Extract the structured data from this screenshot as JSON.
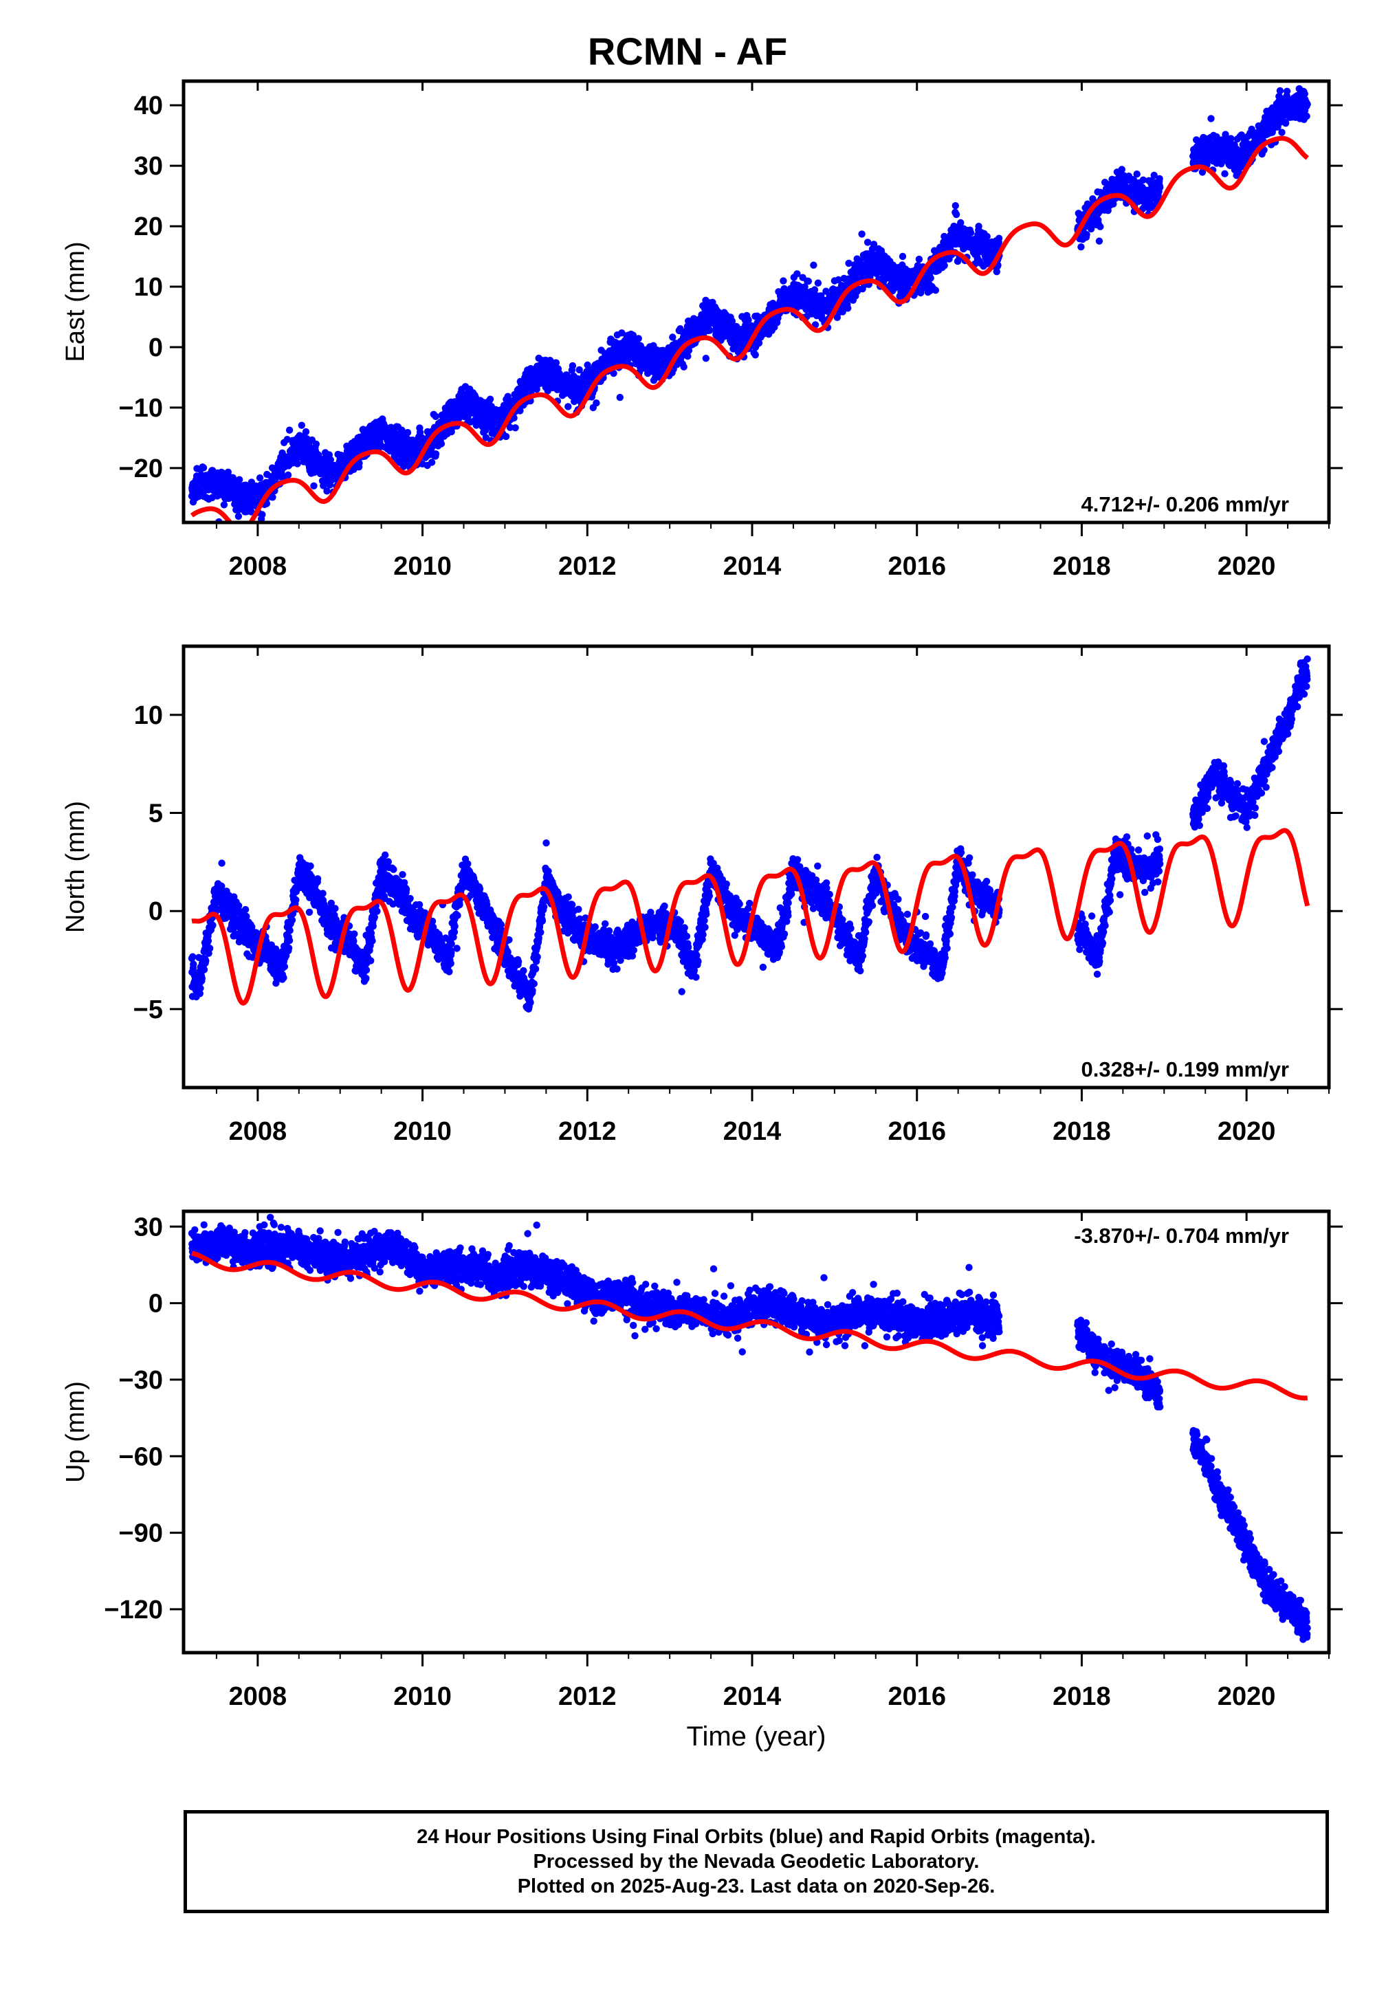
{
  "title": "RCMN - AF",
  "footer": {
    "line1": "24 Hour Positions Using Final Orbits (blue) and Rapid Orbits (magenta).",
    "line2": "Processed by the Nevada Geodetic Laboratory.",
    "line3": "Plotted on 2025-Aug-23. Last data on 2020-Sep-26."
  },
  "colors": {
    "data_points": "#0000ff",
    "model_fit": "#ff0000",
    "frame": "#000000"
  },
  "chart_data": [
    {
      "type": "scatter",
      "xlabel": "",
      "ylabel": "East (mm)",
      "xlim": [
        2007.1,
        2021.0
      ],
      "ylim": [
        -29,
        44
      ],
      "xticks": [
        2008,
        2010,
        2012,
        2014,
        2016,
        2018,
        2020
      ],
      "yticks": [
        -20,
        -10,
        0,
        10,
        20,
        30,
        40
      ],
      "rate_label": "4.712+/- 0.206 mm/yr",
      "rate_label_position": "bottom-right",
      "series": [
        {
          "role": "daily positions",
          "color": "#0000ff",
          "segments": [
            [
              2007.2,
              2017.0
            ],
            [
              2017.95,
              2018.95
            ],
            [
              2019.35,
              2020.74
            ]
          ],
          "points": [
            [
              2007.3,
              -23
            ],
            [
              2007.5,
              -22
            ],
            [
              2007.7,
              -24
            ],
            [
              2007.9,
              -25.5
            ],
            [
              2008.1,
              -24
            ],
            [
              2008.3,
              -19
            ],
            [
              2008.5,
              -16
            ],
            [
              2008.7,
              -19
            ],
            [
              2008.9,
              -21.5
            ],
            [
              2009.1,
              -19
            ],
            [
              2009.3,
              -16
            ],
            [
              2009.5,
              -14
            ],
            [
              2009.7,
              -16
            ],
            [
              2009.9,
              -17.5
            ],
            [
              2010.1,
              -16
            ],
            [
              2010.3,
              -12
            ],
            [
              2010.5,
              -9
            ],
            [
              2010.7,
              -11
            ],
            [
              2010.9,
              -12.5
            ],
            [
              2011.1,
              -10
            ],
            [
              2011.3,
              -6
            ],
            [
              2011.5,
              -4
            ],
            [
              2011.7,
              -6
            ],
            [
              2011.9,
              -7.5
            ],
            [
              2012.1,
              -5
            ],
            [
              2012.3,
              -1.5
            ],
            [
              2012.5,
              0
            ],
            [
              2012.7,
              -2
            ],
            [
              2012.9,
              -3
            ],
            [
              2013.1,
              -1
            ],
            [
              2013.3,
              3
            ],
            [
              2013.5,
              5
            ],
            [
              2013.7,
              3
            ],
            [
              2013.9,
              1.5
            ],
            [
              2014.1,
              2.5
            ],
            [
              2014.3,
              6
            ],
            [
              2014.5,
              9
            ],
            [
              2014.7,
              7.5
            ],
            [
              2014.9,
              6.5
            ],
            [
              2015.1,
              8.5
            ],
            [
              2015.3,
              12
            ],
            [
              2015.5,
              14.5
            ],
            [
              2015.7,
              12
            ],
            [
              2015.9,
              10.5
            ],
            [
              2016.1,
              11.5
            ],
            [
              2016.3,
              15
            ],
            [
              2016.5,
              19
            ],
            [
              2016.7,
              16.5
            ],
            [
              2016.9,
              15.5
            ],
            [
              2018.0,
              20
            ],
            [
              2018.2,
              23
            ],
            [
              2018.4,
              26.5
            ],
            [
              2018.6,
              26
            ],
            [
              2018.8,
              24.5
            ],
            [
              2019.4,
              32
            ],
            [
              2019.6,
              33
            ],
            [
              2019.8,
              31.5
            ],
            [
              2020.0,
              32
            ],
            [
              2020.2,
              35
            ],
            [
              2020.4,
              39
            ],
            [
              2020.6,
              40
            ]
          ]
        },
        {
          "role": "model fit",
          "color": "#ff0000",
          "model": {
            "ref_year": 2014.0,
            "offset": 2.2,
            "rate": 4.712,
            "annual_sin": 2.5,
            "annual_cos": -1.2,
            "semiannual_sin": 0.4,
            "semiannual_cos": 0.3
          },
          "x_range": [
            2007.2,
            2020.74
          ]
        }
      ]
    },
    {
      "type": "scatter",
      "xlabel": "",
      "ylabel": "North (mm)",
      "xlim": [
        2007.1,
        2021.0
      ],
      "ylim": [
        -9,
        13.5
      ],
      "xticks": [
        2008,
        2010,
        2012,
        2014,
        2016,
        2018,
        2020
      ],
      "yticks": [
        -5,
        0,
        5,
        10
      ],
      "rate_label": "0.328+/- 0.199 mm/yr",
      "rate_label_position": "bottom-right",
      "series": [
        {
          "role": "daily positions",
          "color": "#0000ff",
          "segments": [
            [
              2007.2,
              2017.0
            ],
            [
              2017.95,
              2018.95
            ],
            [
              2019.35,
              2020.74
            ]
          ],
          "points": [
            [
              2007.3,
              -3.5
            ],
            [
              2007.5,
              1
            ],
            [
              2007.7,
              0
            ],
            [
              2007.9,
              -1.5
            ],
            [
              2008.1,
              -2
            ],
            [
              2008.3,
              -3
            ],
            [
              2008.5,
              2
            ],
            [
              2008.7,
              1
            ],
            [
              2008.9,
              -1
            ],
            [
              2009.1,
              -1.5
            ],
            [
              2009.3,
              -3
            ],
            [
              2009.5,
              2
            ],
            [
              2009.7,
              1
            ],
            [
              2009.9,
              -0.5
            ],
            [
              2010.1,
              -1
            ],
            [
              2010.3,
              -2.5
            ],
            [
              2010.5,
              2
            ],
            [
              2010.7,
              0.5
            ],
            [
              2010.9,
              -1
            ],
            [
              2011.1,
              -3
            ],
            [
              2011.3,
              -4.5
            ],
            [
              2011.5,
              1.5
            ],
            [
              2011.7,
              0
            ],
            [
              2011.9,
              -1
            ],
            [
              2012.3,
              -2
            ],
            [
              2012.7,
              -1
            ],
            [
              2012.9,
              -0.5
            ],
            [
              2013.1,
              -1
            ],
            [
              2013.3,
              -3
            ],
            [
              2013.5,
              2
            ],
            [
              2013.7,
              0.5
            ],
            [
              2013.9,
              -0.5
            ],
            [
              2014.1,
              -1
            ],
            [
              2014.3,
              -2
            ],
            [
              2014.5,
              2
            ],
            [
              2014.7,
              1
            ],
            [
              2014.9,
              0.5
            ],
            [
              2015.1,
              -1
            ],
            [
              2015.3,
              -2.5
            ],
            [
              2015.5,
              2
            ],
            [
              2015.7,
              0
            ],
            [
              2015.9,
              -1.5
            ],
            [
              2016.1,
              -2
            ],
            [
              2016.3,
              -3
            ],
            [
              2016.5,
              2.5
            ],
            [
              2016.7,
              1
            ],
            [
              2016.9,
              0.5
            ],
            [
              2018.0,
              -1
            ],
            [
              2018.2,
              -2.5
            ],
            [
              2018.4,
              3
            ],
            [
              2018.6,
              2.5
            ],
            [
              2018.8,
              2
            ],
            [
              2019.4,
              5
            ],
            [
              2019.6,
              7
            ],
            [
              2019.8,
              6
            ],
            [
              2020.0,
              5
            ],
            [
              2020.2,
              7
            ],
            [
              2020.4,
              9
            ],
            [
              2020.6,
              11
            ],
            [
              2020.7,
              12
            ]
          ]
        },
        {
          "role": "model fit",
          "color": "#ff0000",
          "model": {
            "ref_year": 2014.0,
            "offset": 0.3,
            "rate": 0.328,
            "annual_sin": 1.9,
            "annual_cos": -1.1,
            "semiannual_sin": 0.6,
            "semiannual_cos": 0.5
          },
          "x_range": [
            2007.2,
            2020.74
          ]
        }
      ]
    },
    {
      "type": "scatter",
      "xlabel": "Time (year)",
      "ylabel": "Up (mm)",
      "xlim": [
        2007.1,
        2021.0
      ],
      "ylim": [
        -137,
        36
      ],
      "xticks": [
        2008,
        2010,
        2012,
        2014,
        2016,
        2018,
        2020
      ],
      "yticks": [
        -120,
        -90,
        -60,
        -30,
        0,
        30
      ],
      "rate_label": "-3.870+/- 0.704 mm/yr",
      "rate_label_position": "top-right",
      "series": [
        {
          "role": "daily positions",
          "color": "#0000ff",
          "segments": [
            [
              2007.2,
              2017.0
            ],
            [
              2017.95,
              2018.95
            ],
            [
              2019.35,
              2020.74
            ]
          ],
          "points": [
            [
              2007.3,
              22
            ],
            [
              2007.6,
              24
            ],
            [
              2007.9,
              20
            ],
            [
              2008.2,
              22
            ],
            [
              2008.5,
              22
            ],
            [
              2008.8,
              18
            ],
            [
              2009.1,
              17
            ],
            [
              2009.4,
              21
            ],
            [
              2009.7,
              22
            ],
            [
              2010.0,
              12
            ],
            [
              2010.3,
              14
            ],
            [
              2010.6,
              14
            ],
            [
              2010.9,
              10
            ],
            [
              2011.2,
              14
            ],
            [
              2011.5,
              12
            ],
            [
              2011.8,
              8
            ],
            [
              2012.1,
              2
            ],
            [
              2012.4,
              4
            ],
            [
              2012.7,
              0
            ],
            [
              2013.0,
              -4
            ],
            [
              2013.3,
              -2
            ],
            [
              2013.6,
              -6
            ],
            [
              2013.9,
              -4
            ],
            [
              2014.2,
              0
            ],
            [
              2014.5,
              -4
            ],
            [
              2014.8,
              -8
            ],
            [
              2015.1,
              -6
            ],
            [
              2015.4,
              -2
            ],
            [
              2015.7,
              -5
            ],
            [
              2016.0,
              -8
            ],
            [
              2016.3,
              -6
            ],
            [
              2016.6,
              -4
            ],
            [
              2016.9,
              -6
            ],
            [
              2018.0,
              -12
            ],
            [
              2018.2,
              -20
            ],
            [
              2018.4,
              -24
            ],
            [
              2018.6,
              -26
            ],
            [
              2018.8,
              -30
            ],
            [
              2019.4,
              -55
            ],
            [
              2019.6,
              -70
            ],
            [
              2019.8,
              -82
            ],
            [
              2020.0,
              -95
            ],
            [
              2020.2,
              -108
            ],
            [
              2020.4,
              -115
            ],
            [
              2020.6,
              -122
            ],
            [
              2020.7,
              -126
            ]
          ]
        },
        {
          "role": "model fit",
          "color": "#ff0000",
          "model": {
            "ref_year": 2014.0,
            "offset": -9,
            "rate": -3.87,
            "annual_sin": 2.0,
            "annual_cos": 1.2,
            "semiannual_sin": 0.0,
            "semiannual_cos": 0.0
          },
          "x_range": [
            2007.2,
            2020.74
          ]
        }
      ]
    }
  ]
}
